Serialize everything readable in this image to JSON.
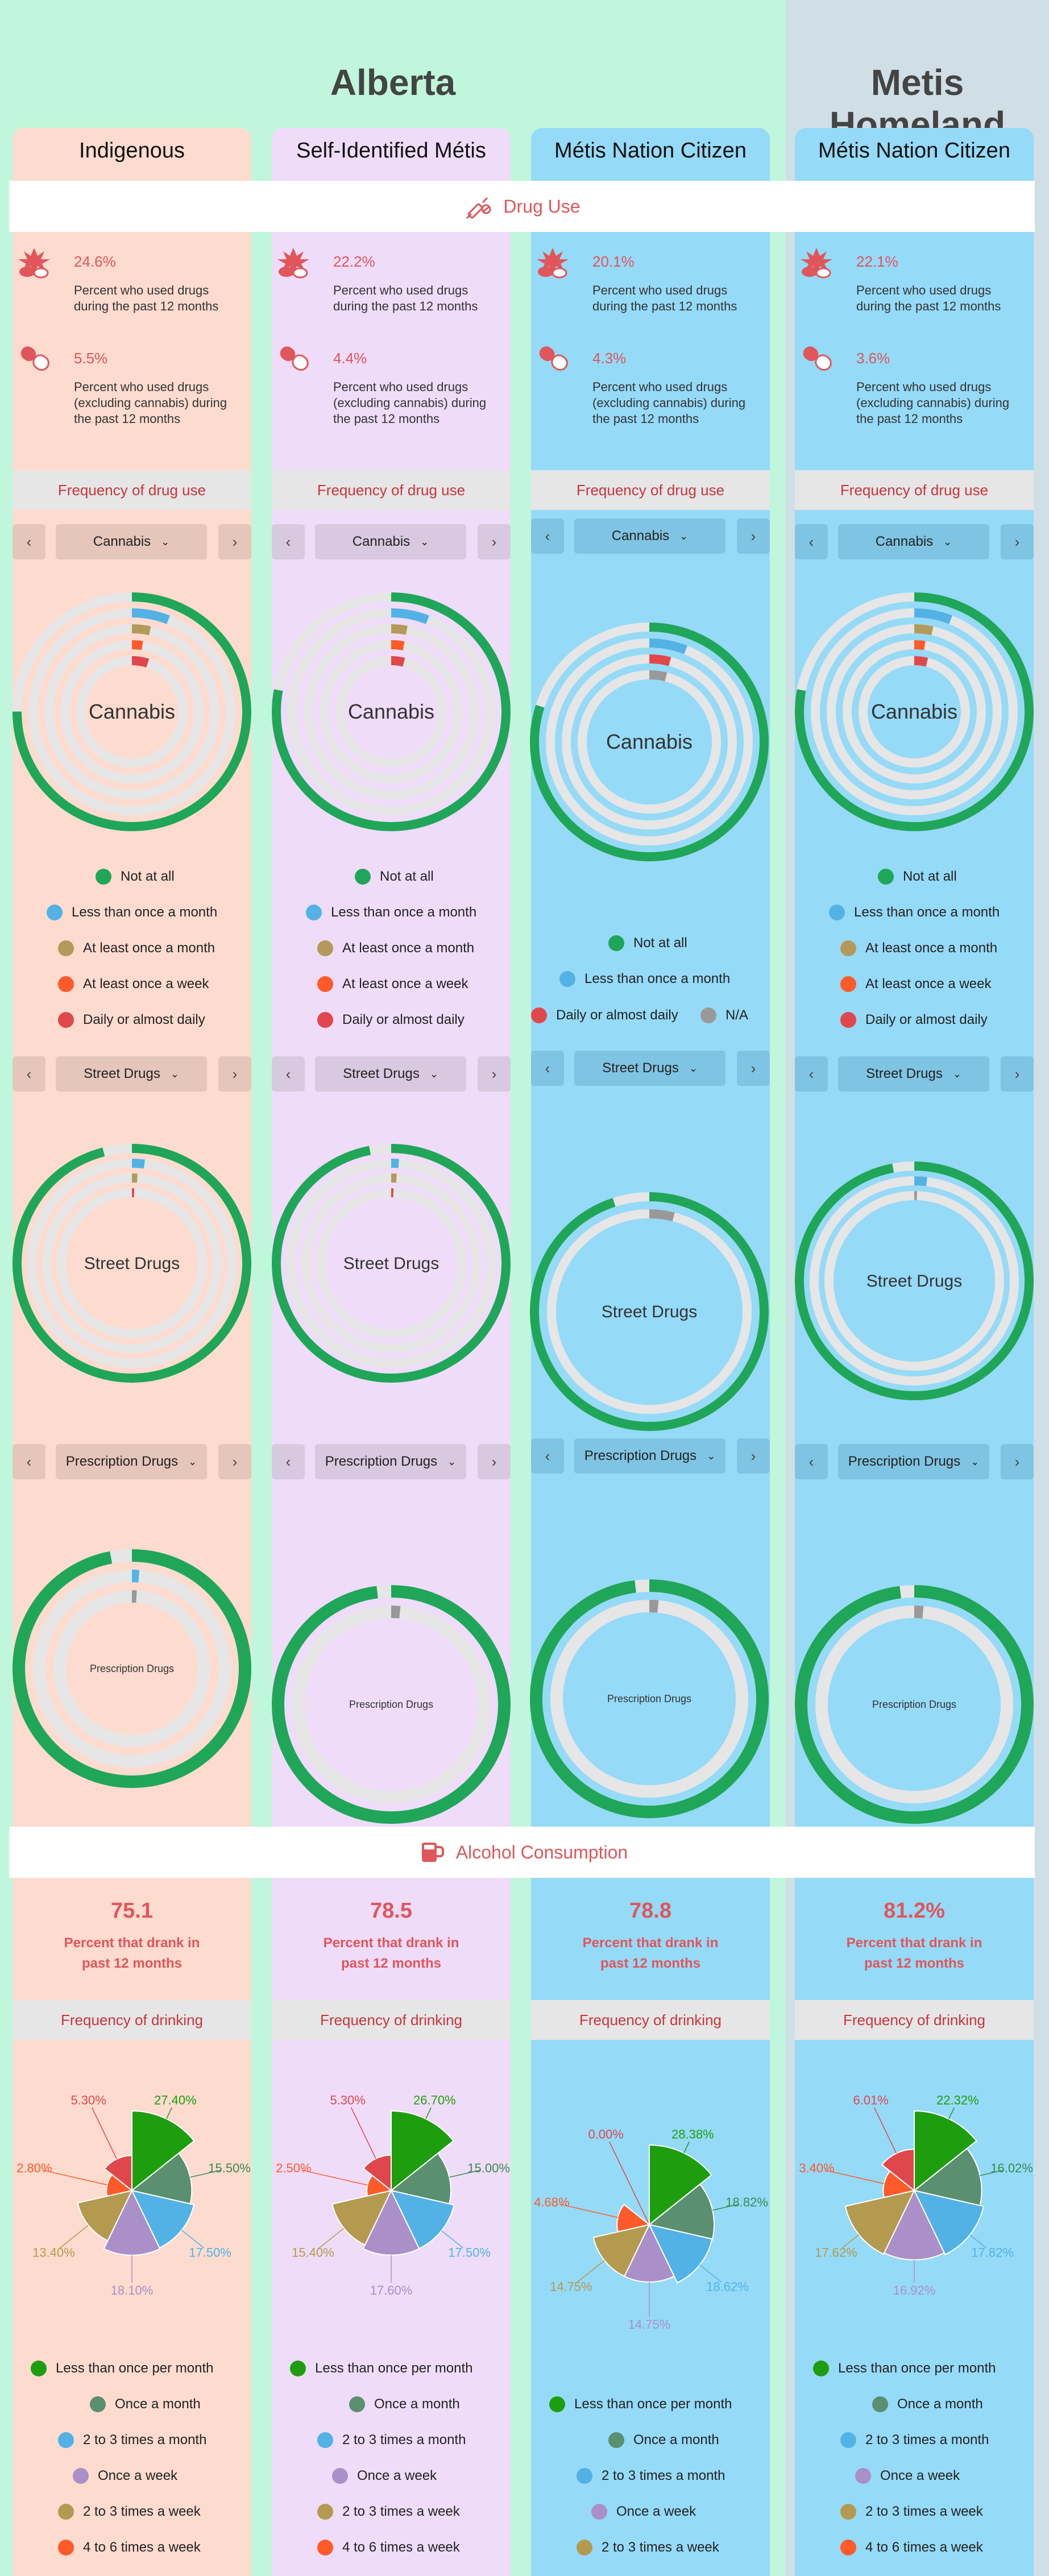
{
  "regions": [
    {
      "name": "Alberta"
    },
    {
      "name": "Metis Homeland"
    }
  ],
  "columns": [
    {
      "key": "indigenous",
      "header": "Indigenous",
      "bg": "#fddbcf",
      "ctrl": "#e6c6ba",
      "center_fill": "#fddbcf",
      "drug_stat1_pct": "24.6%",
      "drug_stat1_desc": "Percent who used drugs during the past 12 months",
      "drug_stat2_pct": "5.5%",
      "drug_stat2_desc": "Percent who used drugs (excluding cannabis) during the past 12 months",
      "freq_label": "Frequency of drug use",
      "nav_cannabis": "Cannabis",
      "nav_street": "Street Drugs",
      "nav_prescription": "Prescription Drugs",
      "alcohol_pct": "75.1",
      "alcohol_desc_l1": "Percent that drank in",
      "alcohol_desc_l2": "past 12 months",
      "drink_label": "Frequency of drinking"
    },
    {
      "key": "self_identified_metis",
      "header": "Self-Identified Métis",
      "bg": "#efdcf8",
      "ctrl": "#d8c8e0",
      "center_fill": "#efdcf8",
      "drug_stat1_pct": "22.2%",
      "drug_stat1_desc": "Percent who used drugs during the past 12 months",
      "drug_stat2_pct": "4.4%",
      "drug_stat2_desc": "Percent who used drugs (excluding cannabis) during the past 12 months",
      "freq_label": "Frequency of drug use",
      "nav_cannabis": "Cannabis",
      "nav_street": "Street Drugs",
      "nav_prescription": "Prescription Drugs",
      "alcohol_pct": "78.5",
      "alcohol_desc_l1": "Percent that drank in",
      "alcohol_desc_l2": "past 12 months",
      "drink_label": "Frequency of drinking"
    },
    {
      "key": "metis_nation_citizen_ab",
      "header": "Métis Nation Citizen",
      "bg": "#95daf7",
      "ctrl": "#7fc4e2",
      "center_fill": "#95daf7",
      "drug_stat1_pct": "20.1%",
      "drug_stat1_desc": "Percent who used drugs during the past 12 months",
      "drug_stat2_pct": "4.3%",
      "drug_stat2_desc": "Percent who used drugs (excluding cannabis) during the past 12 months",
      "freq_label": "Frequency of drug use",
      "nav_cannabis": "Cannabis",
      "nav_street": "Street Drugs",
      "nav_prescription": "Prescription Drugs",
      "alcohol_pct": "78.8",
      "alcohol_desc_l1": "Percent that drank in",
      "alcohol_desc_l2": "past 12 months",
      "drink_label": "Frequency of drinking"
    },
    {
      "key": "metis_nation_citizen_homeland",
      "header": "Métis Nation Citizen",
      "bg": "#95daf7",
      "ctrl": "#7fc4e2",
      "center_fill": "#95daf7",
      "drug_stat1_pct": "22.1%",
      "drug_stat1_desc": "Percent who used drugs during the past 12 months",
      "drug_stat2_pct": "3.6%",
      "drug_stat2_desc": "Percent who used drugs (excluding cannabis) during the past 12 months",
      "freq_label": "Frequency of drug use",
      "nav_cannabis": "Cannabis",
      "nav_street": "Street Drugs",
      "nav_prescription": "Prescription Drugs",
      "alcohol_pct": "81.2%",
      "alcohol_desc_l1": "Percent that drank in",
      "alcohol_desc_l2": "past 12 months",
      "drink_label": "Frequency of drinking"
    }
  ],
  "sections": {
    "drug_use": "Drug Use",
    "alcohol": "Alcohol Consumption"
  },
  "drug_legend": {
    "not_at_all": "Not at all",
    "less_than_monthly": "Less than once a month",
    "monthly": "At least once a month",
    "weekly": "At least once a week",
    "daily": "Daily or almost daily",
    "na": "N/A"
  },
  "drink_legend": {
    "less_than_monthly": "Less than once per month",
    "once_month": "Once a month",
    "two_three_month": "2 to 3 times a month",
    "once_week": "Once a week",
    "two_three_week": "2 to 3 times a week",
    "four_six_week": "4 to 6 times a week"
  },
  "colors": {
    "not_at_all": "#1fa659",
    "less_than_monthly": "#52b2e6",
    "monthly": "#b49a5a",
    "weekly": "#ff5a2a",
    "daily": "#e0474c",
    "na": "#999999",
    "track": "#e6e6e6",
    "drink_less_than_monthly": "#1e9e0e",
    "drink_once_month": "#5a8f6f",
    "drink_two_three_month": "#52b2e6",
    "drink_once_week": "#ab8fc8",
    "drink_two_three_week": "#b49a4e",
    "drink_four_six_week": "#ff5a2a",
    "drink_daily": "#e0474c"
  },
  "chart_data": [
    {
      "type": "pie",
      "title": "Frequency of drinking",
      "column": "Indigenous",
      "categories": [
        "Less than once per month",
        "Once a month",
        "2 to 3 times a month",
        "Once a week",
        "2 to 3 times a week",
        "4 to 6 times a week",
        "Daily or almost daily"
      ],
      "values": [
        27.4,
        15.5,
        17.5,
        18.1,
        13.4,
        2.8,
        5.3
      ]
    },
    {
      "type": "pie",
      "title": "Frequency of drinking",
      "column": "Self-Identified Métis",
      "categories": [
        "Less than once per month",
        "Once a month",
        "2 to 3 times a month",
        "Once a week",
        "2 to 3 times a week",
        "4 to 6 times a week",
        "Daily or almost daily"
      ],
      "values": [
        26.7,
        15.0,
        17.5,
        17.6,
        15.4,
        2.5,
        5.3
      ]
    },
    {
      "type": "pie",
      "title": "Frequency of drinking",
      "column": "Métis Nation Citizen (Alberta)",
      "categories": [
        "Less than once per month",
        "Once a month",
        "2 to 3 times a month",
        "Once a week",
        "2 to 3 times a week",
        "4 to 6 times a week",
        "Daily or almost daily"
      ],
      "values": [
        28.38,
        18.82,
        18.62,
        14.75,
        14.75,
        4.68,
        0.0
      ]
    },
    {
      "type": "pie",
      "title": "Frequency of drinking",
      "column": "Métis Nation Citizen (Metis Homeland)",
      "categories": [
        "Less than once per month",
        "Once a month",
        "2 to 3 times a month",
        "Once a week",
        "2 to 3 times a week",
        "4 to 6 times a week",
        "Daily or almost daily"
      ],
      "values": [
        22.32,
        16.02,
        17.82,
        16.92,
        17.62,
        3.4,
        6.01
      ]
    }
  ]
}
